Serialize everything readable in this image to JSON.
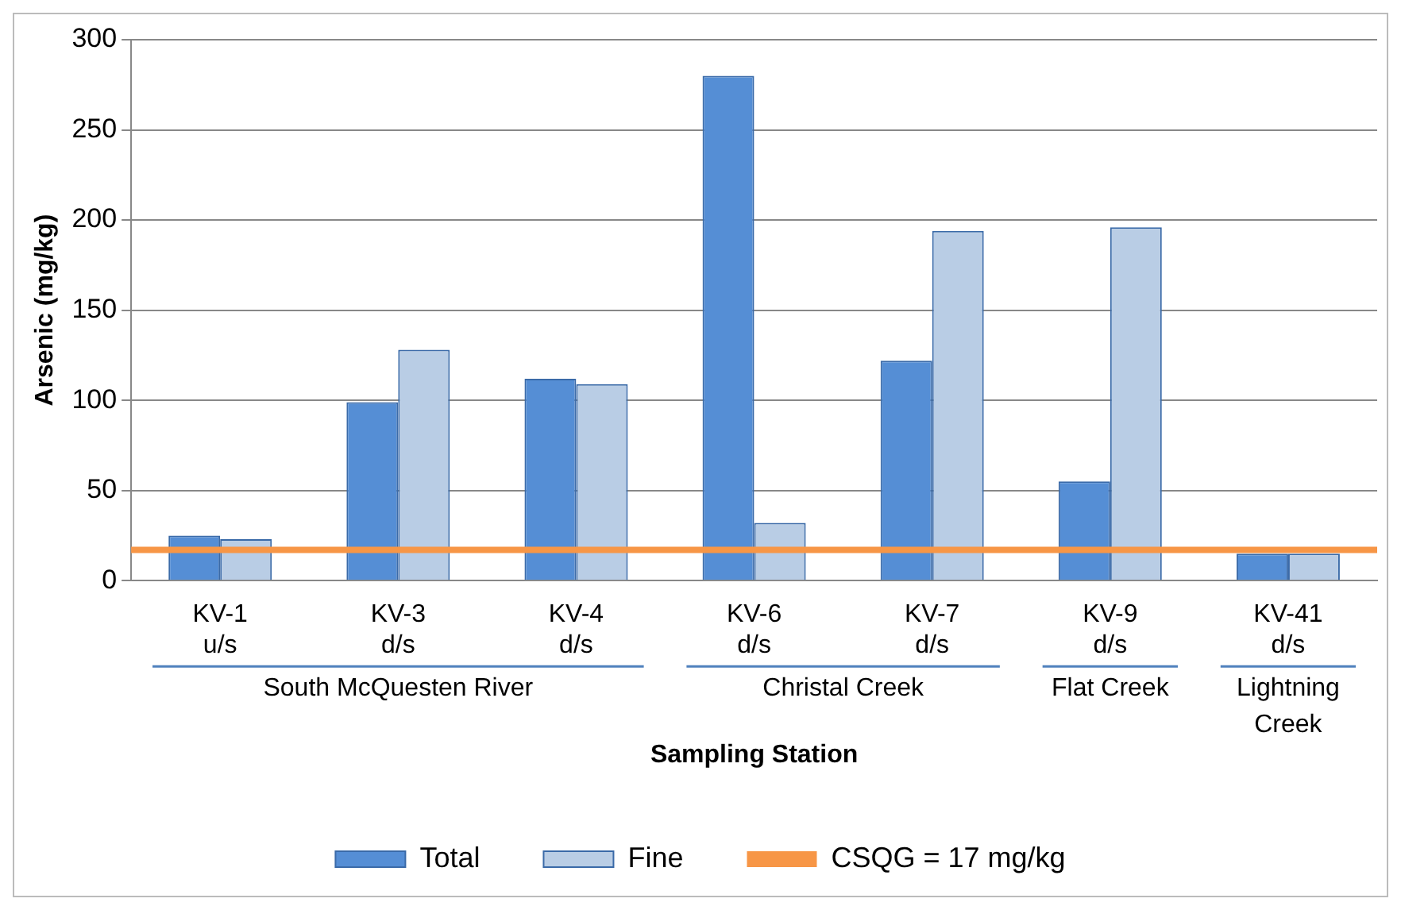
{
  "chart_data": {
    "type": "bar",
    "xlabel": "Sampling Station",
    "ylabel": "Arsenic (mg/kg)",
    "categories": [
      "KV-1 u/s",
      "KV-3 d/s",
      "KV-4 d/s",
      "KV-6 d/s",
      "KV-7 d/s",
      "KV-9 d/s",
      "KV-41 d/s"
    ],
    "series": [
      {
        "name": "Total",
        "color": "#558ed5",
        "values": [
          25,
          99,
          112,
          280,
          122,
          55,
          15
        ]
      },
      {
        "name": "Fine",
        "color": "#b9cde5",
        "values": [
          23,
          128,
          109,
          32,
          194,
          196,
          15
        ]
      }
    ],
    "ylim": [
      0,
      300
    ],
    "yticks": [
      0,
      50,
      100,
      150,
      200,
      250,
      300
    ],
    "grid": "y",
    "legend": "bottom",
    "ref_lines": [
      {
        "axis": "y",
        "value": 17,
        "label": "CSQG = 17 mg/kg",
        "color": "#f79646"
      }
    ],
    "annotations": [
      "South McQuesten River",
      "Christal Creek",
      "Flat Creek",
      "Lightning Creek"
    ]
  }
}
